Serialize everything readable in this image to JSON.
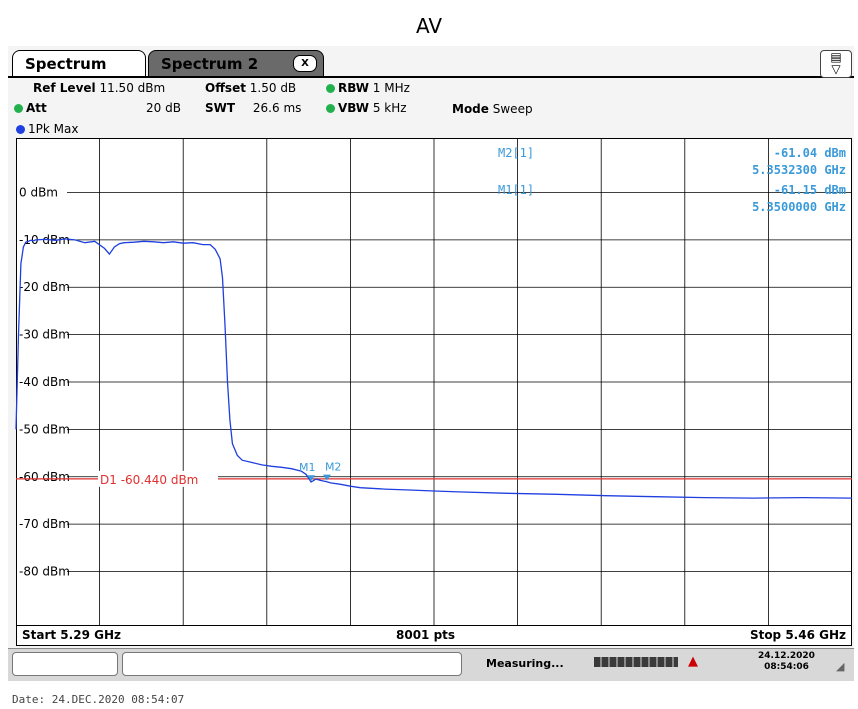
{
  "figure_title": "AV",
  "tabs": [
    {
      "label": "Spectrum"
    },
    {
      "label": "Spectrum 2"
    }
  ],
  "tab_close_label": "X",
  "header": {
    "ref_level_label": "Ref Level",
    "ref_level_value": "11.50 dBm",
    "offset_label": "Offset",
    "offset_value": "1.50 dB",
    "rbw_label": "RBW",
    "rbw_value": "1 MHz",
    "att_label": "Att",
    "att_value": "20 dB",
    "swt_label": "SWT",
    "swt_value": "26.6 ms",
    "vbw_label": "VBW",
    "vbw_value": "5 kHz",
    "mode_label": "Mode",
    "mode_value": "Sweep"
  },
  "trace_label": "1Pk Max",
  "markers_readout": [
    {
      "name": "M2[1]",
      "level": "-61.04 dBm",
      "freq": "5.3532300 GHz"
    },
    {
      "name": "M1[1]",
      "level": "-61.15 dBm",
      "freq": "5.3500000 GHz"
    }
  ],
  "footer": {
    "start": "Start 5.29 GHz",
    "points": "8001 pts",
    "stop": "Stop 5.46 GHz"
  },
  "status": {
    "measuring": "Measuring...",
    "date": "24.12.2020",
    "time": "08:54:06"
  },
  "date_line": "Date: 24.DEC.2020  08:54:07",
  "colors": {
    "trace": "#1f3fe0",
    "display_line": "#e03030",
    "marker": "#3a9ad9",
    "grid": "#000000"
  },
  "chart_data": {
    "type": "line",
    "title": "AV",
    "xlim": [
      5.29,
      5.46
    ],
    "ylim": [
      -91.5,
      11.5
    ],
    "x_unit": "GHz",
    "y_unit": "dBm",
    "y_ticks": [
      {
        "value": 0,
        "label": "0 dBm"
      },
      {
        "value": -10,
        "label": "-10 dBm"
      },
      {
        "value": -20,
        "label": "-20 dBm"
      },
      {
        "value": -30,
        "label": "-30 dBm"
      },
      {
        "value": -40,
        "label": "-40 dBm"
      },
      {
        "value": -50,
        "label": "-50 dBm"
      },
      {
        "value": -60,
        "label": "-60 dBm"
      },
      {
        "value": -70,
        "label": "-70 dBm"
      },
      {
        "value": -80,
        "label": "-80 dBm"
      }
    ],
    "grid": true,
    "display_line": {
      "value": -60.44,
      "label": "D1  -60.440 dBm"
    },
    "markers": [
      {
        "label": "M1",
        "x": 5.35,
        "y": -61.15
      },
      {
        "label": "M2",
        "x": 5.35323,
        "y": -61.04
      }
    ],
    "series": [
      {
        "x": [
          5.29,
          5.2905,
          5.291,
          5.2915,
          5.292,
          5.2925,
          5.293,
          5.2935,
          5.294,
          5.296,
          5.298,
          5.3,
          5.302,
          5.304,
          5.306,
          5.308,
          5.309,
          5.31,
          5.311,
          5.312,
          5.314,
          5.316,
          5.318,
          5.32,
          5.322,
          5.324,
          5.326,
          5.328,
          5.3295,
          5.3305,
          5.3315,
          5.332,
          5.3325,
          5.333,
          5.3335,
          5.334,
          5.335,
          5.336,
          5.338,
          5.34,
          5.342,
          5.344,
          5.346,
          5.348,
          5.349,
          5.35,
          5.351,
          5.352,
          5.353,
          5.354,
          5.356,
          5.358,
          5.36,
          5.365,
          5.37,
          5.375,
          5.38,
          5.39,
          5.4,
          5.41,
          5.42,
          5.43,
          5.44,
          5.45,
          5.46
        ],
        "y": [
          -50,
          -30,
          -15,
          -11.5,
          -10.5,
          -10.3,
          -10.1,
          -10.2,
          -10.0,
          -9.9,
          -10.1,
          -9.8,
          -10.0,
          -10.6,
          -10.3,
          -11.8,
          -13.0,
          -11.5,
          -10.8,
          -10.6,
          -10.5,
          -10.3,
          -10.4,
          -10.6,
          -10.4,
          -10.7,
          -10.6,
          -11.0,
          -11.0,
          -12.0,
          -14.0,
          -18.0,
          -28.0,
          -40.0,
          -48.0,
          -53.0,
          -55.5,
          -56.5,
          -57.0,
          -57.5,
          -57.8,
          -58.0,
          -58.3,
          -58.8,
          -59.5,
          -61.1,
          -60.5,
          -60.8,
          -61.0,
          -61.3,
          -61.6,
          -62.0,
          -62.3,
          -62.6,
          -62.8,
          -63.0,
          -63.2,
          -63.5,
          -63.7,
          -64.0,
          -64.2,
          -64.4,
          -64.5,
          -64.4,
          -64.5
        ]
      }
    ]
  }
}
